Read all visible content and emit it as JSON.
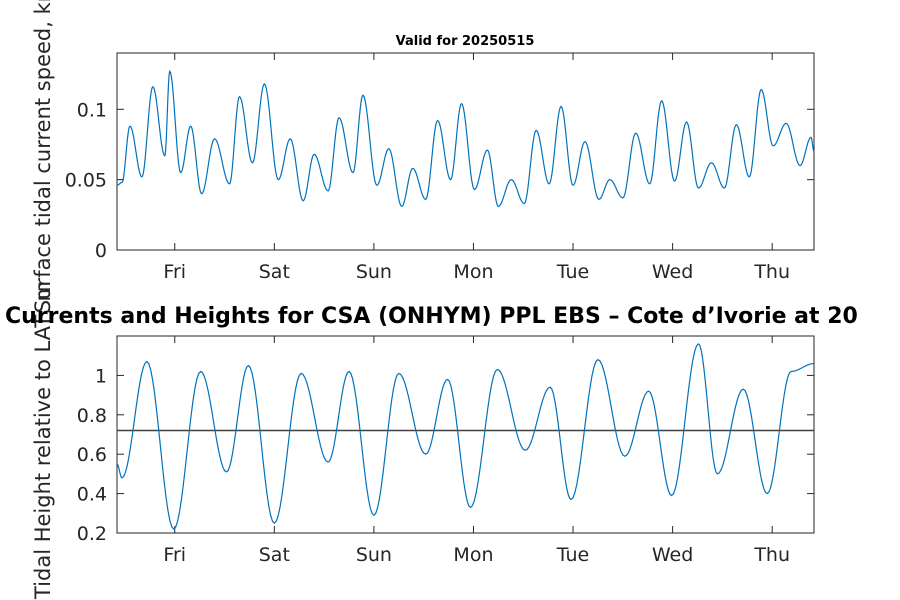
{
  "figure": {
    "main_title": "Currents and Heights for CSA (ONHYM) PPL EBS  – Cote d’Ivorie at 20",
    "colors": {
      "series": "#0072bd",
      "reference_line": "#404040",
      "axes": "#262626"
    }
  },
  "chart_data": [
    {
      "type": "line",
      "title": "Valid for 20250515",
      "xlabel": "",
      "ylabel": "Surface tidal current speed, kn",
      "xlim": [
        0,
        7
      ],
      "ylim": [
        0,
        0.14
      ],
      "x_ticks": [
        {
          "x": 0.58,
          "label": "Fri"
        },
        {
          "x": 1.58,
          "label": "Sat"
        },
        {
          "x": 2.58,
          "label": "Sun"
        },
        {
          "x": 3.58,
          "label": "Mon"
        },
        {
          "x": 4.58,
          "label": "Tue"
        },
        {
          "x": 5.58,
          "label": "Wed"
        },
        {
          "x": 6.58,
          "label": "Thu"
        }
      ],
      "y_ticks": [
        {
          "y": 0,
          "label": "0"
        },
        {
          "y": 0.05,
          "label": "0.05"
        },
        {
          "y": 0.1,
          "label": "0.1"
        }
      ],
      "grid": false,
      "series": [
        {
          "color": "#0072bd",
          "x": [
            0.0,
            0.05,
            0.13,
            0.25,
            0.36,
            0.48,
            0.53,
            0.64,
            0.74,
            0.85,
            0.98,
            1.13,
            1.23,
            1.36,
            1.48,
            1.62,
            1.74,
            1.87,
            1.98,
            2.12,
            2.23,
            2.37,
            2.47,
            2.61,
            2.73,
            2.86,
            2.97,
            3.1,
            3.22,
            3.35,
            3.46,
            3.59,
            3.72,
            3.83,
            3.96,
            4.09,
            4.21,
            4.34,
            4.46,
            4.58,
            4.7,
            4.84,
            4.95,
            5.08,
            5.21,
            5.35,
            5.47,
            5.6,
            5.72,
            5.84,
            5.97,
            6.1,
            6.22,
            6.35,
            6.47,
            6.59,
            6.72,
            6.86,
            6.97,
            7.0
          ],
          "y": [
            0.046,
            0.048,
            0.088,
            0.052,
            0.116,
            0.067,
            0.127,
            0.055,
            0.088,
            0.04,
            0.079,
            0.047,
            0.109,
            0.062,
            0.118,
            0.05,
            0.079,
            0.035,
            0.068,
            0.042,
            0.094,
            0.055,
            0.11,
            0.046,
            0.072,
            0.031,
            0.058,
            0.036,
            0.092,
            0.05,
            0.104,
            0.043,
            0.071,
            0.031,
            0.05,
            0.033,
            0.085,
            0.047,
            0.102,
            0.046,
            0.077,
            0.036,
            0.05,
            0.037,
            0.083,
            0.047,
            0.106,
            0.049,
            0.091,
            0.044,
            0.062,
            0.044,
            0.089,
            0.052,
            0.114,
            0.074,
            0.09,
            0.06,
            0.08,
            0.07
          ]
        }
      ]
    },
    {
      "type": "line",
      "title": "",
      "xlabel": "",
      "ylabel": "Tidal Height relative to LAT, m",
      "xlim": [
        0,
        7
      ],
      "ylim": [
        0.2,
        1.2
      ],
      "x_ticks": [
        {
          "x": 0.58,
          "label": "Fri"
        },
        {
          "x": 1.58,
          "label": "Sat"
        },
        {
          "x": 2.58,
          "label": "Sun"
        },
        {
          "x": 3.58,
          "label": "Mon"
        },
        {
          "x": 4.58,
          "label": "Tue"
        },
        {
          "x": 5.58,
          "label": "Wed"
        },
        {
          "x": 6.58,
          "label": "Thu"
        }
      ],
      "y_ticks": [
        {
          "y": 0.2,
          "label": "0.2"
        },
        {
          "y": 0.4,
          "label": "0.4"
        },
        {
          "y": 0.6,
          "label": "0.6"
        },
        {
          "y": 0.8,
          "label": "0.8"
        },
        {
          "y": 1.0,
          "label": "1"
        }
      ],
      "grid": false,
      "reference_line": {
        "y": 0.72,
        "color": "#404040"
      },
      "series": [
        {
          "color": "#0072bd",
          "x": [
            0.0,
            0.05,
            0.3,
            0.57,
            0.84,
            1.1,
            1.32,
            1.58,
            1.85,
            2.12,
            2.33,
            2.58,
            2.83,
            3.1,
            3.32,
            3.55,
            3.82,
            4.1,
            4.35,
            4.56,
            4.83,
            5.1,
            5.34,
            5.57,
            5.84,
            6.03,
            6.29,
            6.53,
            6.77,
            7.0
          ],
          "y": [
            0.55,
            0.48,
            1.07,
            0.22,
            1.02,
            0.51,
            1.05,
            0.25,
            1.01,
            0.56,
            1.02,
            0.29,
            1.01,
            0.6,
            0.98,
            0.33,
            1.03,
            0.62,
            0.94,
            0.37,
            1.08,
            0.59,
            0.92,
            0.39,
            1.16,
            0.5,
            0.93,
            0.4,
            1.02,
            1.06
          ]
        }
      ]
    }
  ]
}
